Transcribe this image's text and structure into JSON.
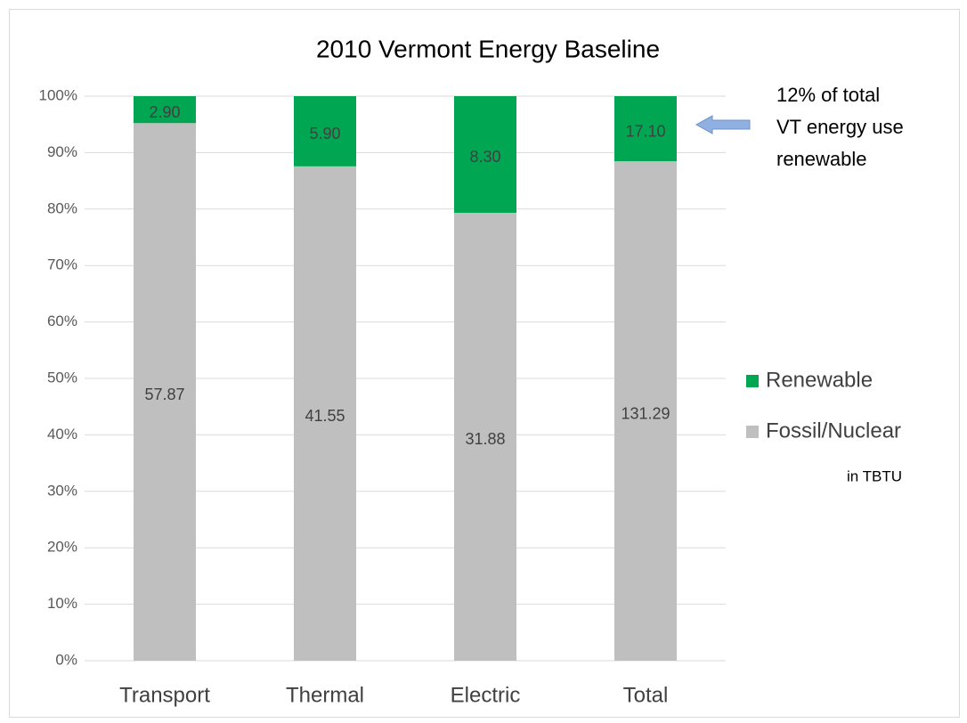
{
  "chart_data": {
    "type": "bar",
    "stacking": "percent",
    "title": "2010 Vermont Energy Baseline",
    "categories": [
      "Transport",
      "Thermal",
      "Electric",
      "Total"
    ],
    "series": [
      {
        "name": "Fossil/Nuclear",
        "color": "#bfbfbf",
        "values": [
          57.87,
          41.55,
          31.88,
          131.29
        ],
        "value_labels": [
          "57.87",
          "41.55",
          "31.88",
          "131.29"
        ]
      },
      {
        "name": "Renewable",
        "color": "#00a651",
        "values": [
          2.9,
          5.9,
          8.3,
          17.1
        ],
        "value_labels": [
          "2.90",
          "5.90",
          "8.30",
          "17.10"
        ]
      }
    ],
    "ylim": [
      0,
      100
    ],
    "yticks": [
      {
        "value": 0,
        "label": "0%"
      },
      {
        "value": 10,
        "label": "10%"
      },
      {
        "value": 20,
        "label": "20%"
      },
      {
        "value": 30,
        "label": "30%"
      },
      {
        "value": 40,
        "label": "40%"
      },
      {
        "value": 50,
        "label": "50%"
      },
      {
        "value": 60,
        "label": "60%"
      },
      {
        "value": 70,
        "label": "70%"
      },
      {
        "value": 80,
        "label": "80%"
      },
      {
        "value": 90,
        "label": "90%"
      },
      {
        "value": 100,
        "label": "100%"
      }
    ],
    "grid": true,
    "legend_position": "right",
    "unit_note": "in TBTU",
    "annotation": [
      "12% of total",
      "VT energy use",
      "renewable"
    ]
  }
}
